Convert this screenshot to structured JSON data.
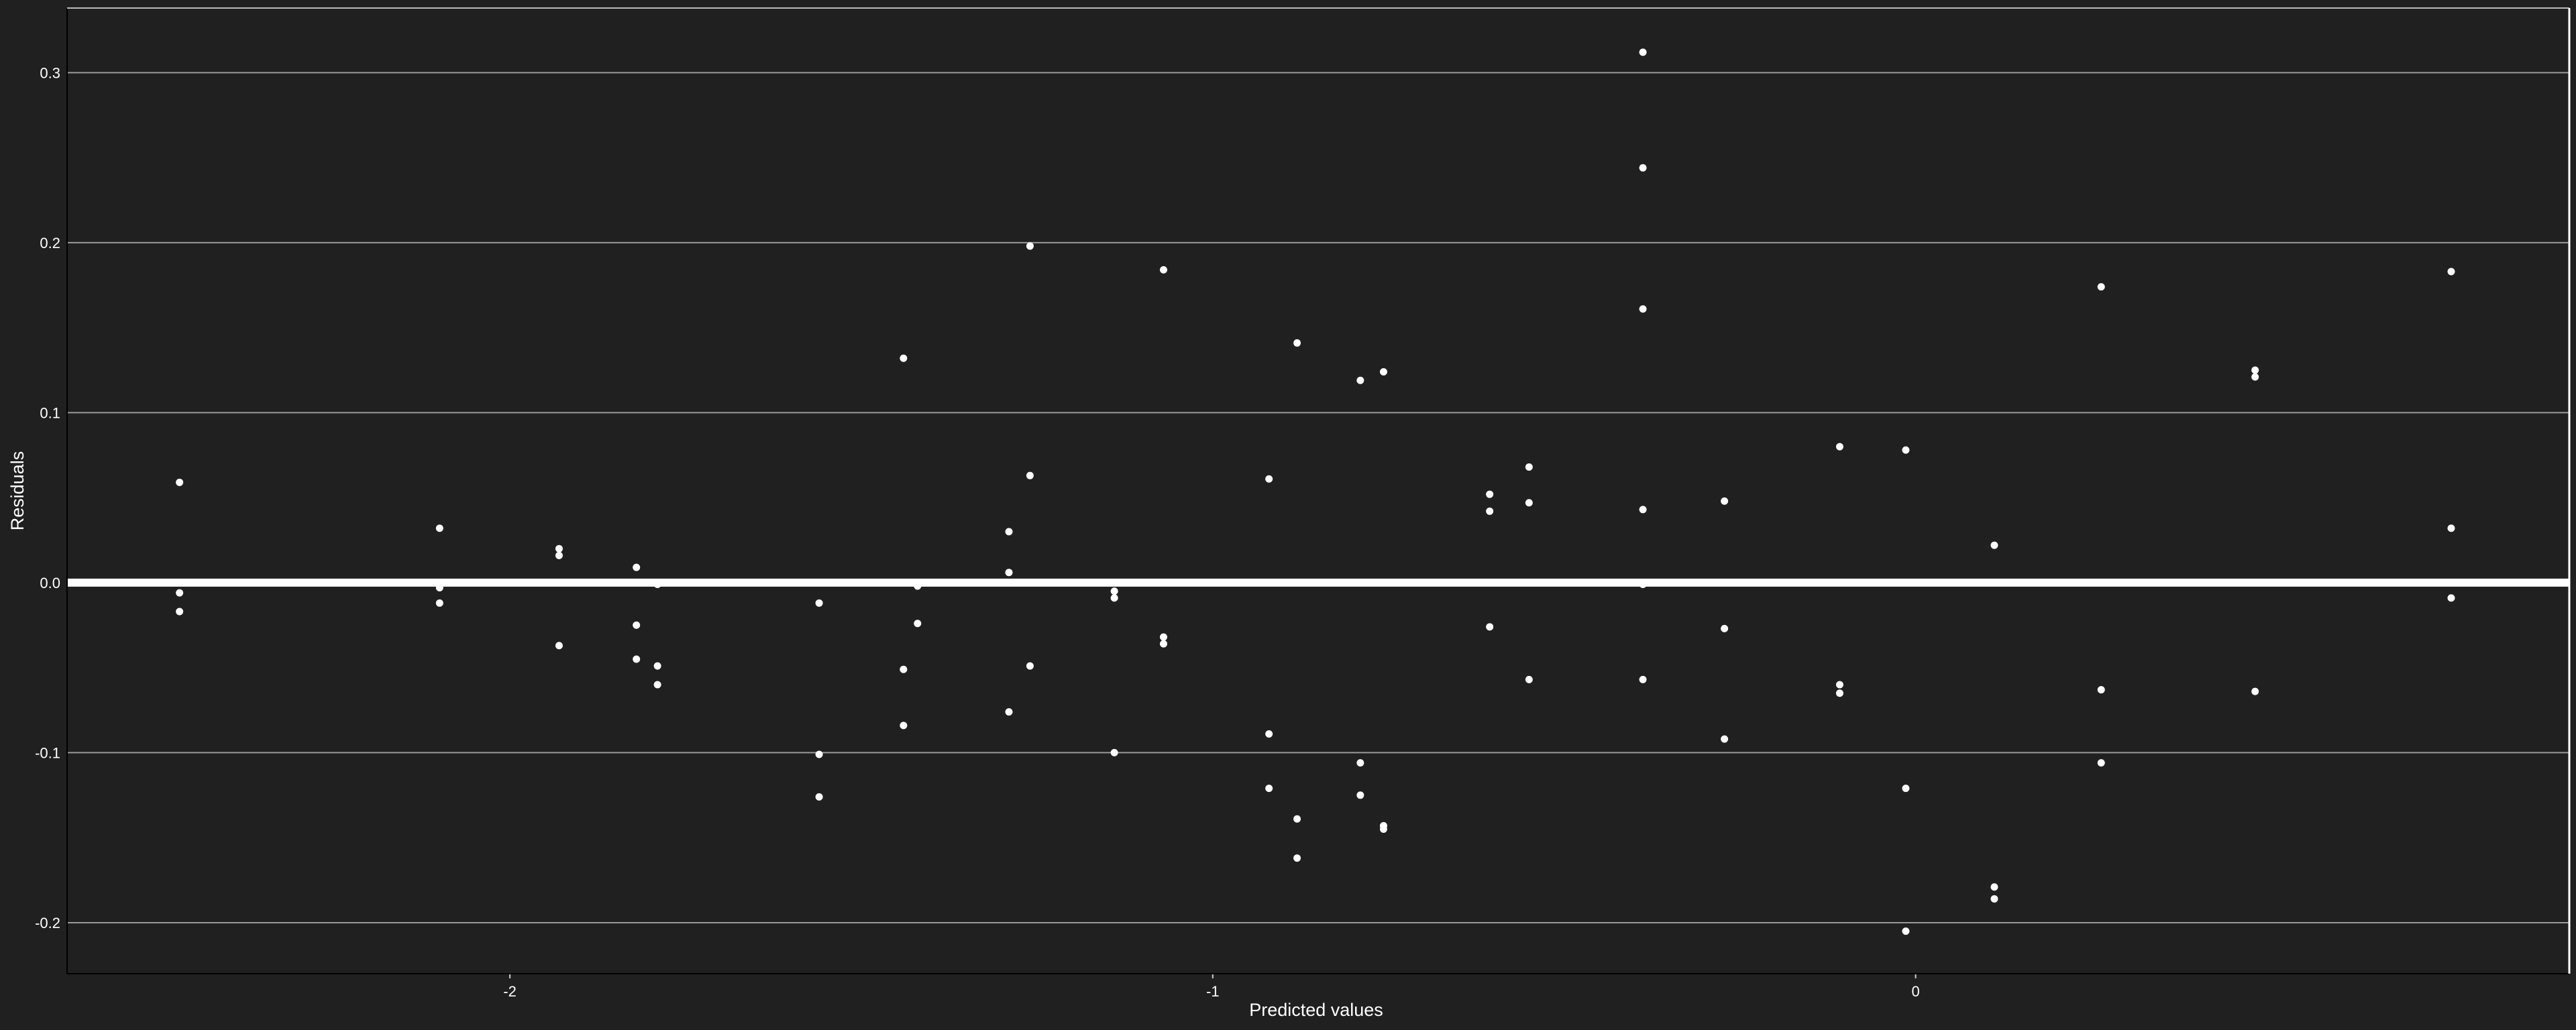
{
  "chart_data": {
    "type": "scatter",
    "title": "",
    "xlabel": "Predicted values",
    "ylabel": "Residuals",
    "xlim": [
      -2.63,
      0.93
    ],
    "ylim": [
      -0.23,
      0.338
    ],
    "x_ticks": [
      {
        "value": -2,
        "label": "-2"
      },
      {
        "value": -1,
        "label": "-1"
      },
      {
        "value": 0,
        "label": "0"
      }
    ],
    "y_ticks": [
      {
        "value": -0.2,
        "label": "-0.2"
      },
      {
        "value": -0.1,
        "label": "-0.1"
      },
      {
        "value": 0.0,
        "label": "0.0"
      },
      {
        "value": 0.1,
        "label": "0.1"
      },
      {
        "value": 0.2,
        "label": "0.2"
      },
      {
        "value": 0.3,
        "label": "0.3"
      }
    ],
    "grid": "horizontal",
    "reference_line": 0,
    "background_color": "#202020",
    "point_color": "#ffffff",
    "points": [
      {
        "x": -2.47,
        "y": 0.059
      },
      {
        "x": -2.47,
        "y": -0.006
      },
      {
        "x": -2.47,
        "y": -0.017
      },
      {
        "x": -2.1,
        "y": 0.032
      },
      {
        "x": -2.1,
        "y": -0.003
      },
      {
        "x": -2.1,
        "y": -0.012
      },
      {
        "x": -1.93,
        "y": 0.02
      },
      {
        "x": -1.93,
        "y": 0.016
      },
      {
        "x": -1.93,
        "y": -0.037
      },
      {
        "x": -1.82,
        "y": 0.009
      },
      {
        "x": -1.82,
        "y": -0.025
      },
      {
        "x": -1.82,
        "y": -0.045
      },
      {
        "x": -1.79,
        "y": -0.001
      },
      {
        "x": -1.79,
        "y": -0.049
      },
      {
        "x": -1.79,
        "y": -0.06
      },
      {
        "x": -1.56,
        "y": -0.012
      },
      {
        "x": -1.56,
        "y": -0.101
      },
      {
        "x": -1.56,
        "y": -0.126
      },
      {
        "x": -1.44,
        "y": 0.132
      },
      {
        "x": -1.44,
        "y": -0.051
      },
      {
        "x": -1.44,
        "y": -0.084
      },
      {
        "x": -1.42,
        "y": -0.002
      },
      {
        "x": -1.42,
        "y": -0.024
      },
      {
        "x": -1.29,
        "y": 0.03
      },
      {
        "x": -1.29,
        "y": 0.006
      },
      {
        "x": -1.29,
        "y": -0.076
      },
      {
        "x": -1.26,
        "y": 0.198
      },
      {
        "x": -1.26,
        "y": 0.063
      },
      {
        "x": -1.26,
        "y": -0.049
      },
      {
        "x": -1.14,
        "y": -0.005
      },
      {
        "x": -1.14,
        "y": -0.009
      },
      {
        "x": -1.14,
        "y": -0.1
      },
      {
        "x": -1.07,
        "y": 0.184
      },
      {
        "x": -1.07,
        "y": -0.032
      },
      {
        "x": -1.07,
        "y": -0.036
      },
      {
        "x": -0.92,
        "y": 0.061
      },
      {
        "x": -0.92,
        "y": -0.089
      },
      {
        "x": -0.92,
        "y": -0.121
      },
      {
        "x": -0.88,
        "y": 0.141
      },
      {
        "x": -0.88,
        "y": -0.139
      },
      {
        "x": -0.88,
        "y": -0.162
      },
      {
        "x": -0.79,
        "y": 0.119
      },
      {
        "x": -0.79,
        "y": -0.106
      },
      {
        "x": -0.79,
        "y": -0.125
      },
      {
        "x": -0.757,
        "y": 0.124
      },
      {
        "x": -0.757,
        "y": -0.143
      },
      {
        "x": -0.757,
        "y": -0.145
      },
      {
        "x": -0.606,
        "y": 0.052
      },
      {
        "x": -0.606,
        "y": 0.042
      },
      {
        "x": -0.606,
        "y": -0.026
      },
      {
        "x": -0.55,
        "y": 0.068
      },
      {
        "x": -0.55,
        "y": 0.047
      },
      {
        "x": -0.55,
        "y": -0.057
      },
      {
        "x": -0.388,
        "y": 0.312
      },
      {
        "x": -0.388,
        "y": 0.244
      },
      {
        "x": -0.388,
        "y": 0.161
      },
      {
        "x": -0.388,
        "y": 0.043
      },
      {
        "x": -0.388,
        "y": -0.001
      },
      {
        "x": -0.388,
        "y": -0.057
      },
      {
        "x": -0.272,
        "y": 0.048
      },
      {
        "x": -0.272,
        "y": -0.027
      },
      {
        "x": -0.272,
        "y": -0.092
      },
      {
        "x": -0.108,
        "y": 0.08
      },
      {
        "x": -0.108,
        "y": -0.06
      },
      {
        "x": -0.108,
        "y": -0.065
      },
      {
        "x": -0.014,
        "y": 0.078
      },
      {
        "x": -0.014,
        "y": -0.121
      },
      {
        "x": -0.014,
        "y": -0.205
      },
      {
        "x": 0.112,
        "y": 0.022
      },
      {
        "x": 0.112,
        "y": -0.179
      },
      {
        "x": 0.112,
        "y": -0.186
      },
      {
        "x": 0.264,
        "y": 0.174
      },
      {
        "x": 0.264,
        "y": -0.063
      },
      {
        "x": 0.264,
        "y": -0.106
      },
      {
        "x": 0.483,
        "y": 0.125
      },
      {
        "x": 0.483,
        "y": 0.121
      },
      {
        "x": 0.483,
        "y": -0.064
      },
      {
        "x": 0.762,
        "y": 0.183
      },
      {
        "x": 0.762,
        "y": 0.032
      },
      {
        "x": 0.762,
        "y": -0.009
      }
    ]
  }
}
